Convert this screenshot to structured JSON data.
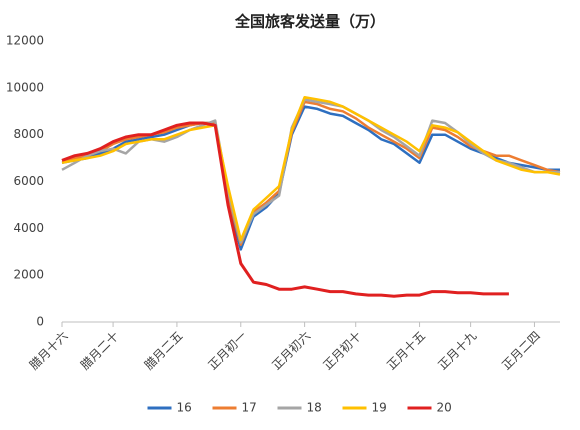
{
  "chart_data": {
    "type": "line",
    "title": "全国旅客发送量（万）",
    "categories": [
      "腊月十六",
      null,
      null,
      null,
      "腊月二十",
      null,
      null,
      null,
      null,
      "腊月二五",
      null,
      null,
      null,
      null,
      "正月初一",
      null,
      null,
      null,
      null,
      "正月初六",
      null,
      null,
      null,
      "正月初十",
      null,
      null,
      null,
      null,
      "正月十五",
      null,
      null,
      null,
      "正月十九",
      null,
      null,
      null,
      null,
      "正月二四",
      null,
      null
    ],
    "series": [
      {
        "name": "16",
        "color": "#2e6fc0",
        "values": [
          6800,
          6900,
          7000,
          7200,
          7400,
          7700,
          7800,
          7900,
          8000,
          8200,
          8400,
          8500,
          8500,
          5200,
          3100,
          4500,
          4900,
          5500,
          8000,
          9200,
          9100,
          8900,
          8800,
          8500,
          8200,
          7800,
          7600,
          7200,
          6800,
          8000,
          8000,
          7700,
          7400,
          7200,
          7000,
          6800,
          6700,
          6600,
          6500,
          6500
        ]
      },
      {
        "name": "17",
        "color": "#ed7d31",
        "values": [
          6900,
          7000,
          7100,
          7300,
          7600,
          7800,
          7900,
          8000,
          8100,
          8300,
          8400,
          8500,
          8500,
          5400,
          3300,
          4700,
          5100,
          5600,
          8100,
          9400,
          9300,
          9100,
          9000,
          8700,
          8300,
          8000,
          7700,
          7400,
          7000,
          8300,
          8200,
          7900,
          7500,
          7300,
          7100,
          7100,
          6900,
          6700,
          6500,
          6400
        ]
      },
      {
        "name": "18",
        "color": "#a5a5a5",
        "values": [
          6500,
          6800,
          7100,
          7300,
          7400,
          7200,
          7700,
          7800,
          7700,
          7900,
          8200,
          8400,
          8600,
          5600,
          3400,
          4600,
          5000,
          5400,
          8300,
          9500,
          9400,
          9300,
          9200,
          8900,
          8600,
          8200,
          7900,
          7500,
          7100,
          8600,
          8500,
          8100,
          7600,
          7200,
          6900,
          6800,
          6600,
          6400,
          6400,
          6400
        ]
      },
      {
        "name": "19",
        "color": "#ffc000",
        "values": [
          6800,
          6900,
          7000,
          7100,
          7300,
          7600,
          7700,
          7800,
          7800,
          8000,
          8200,
          8300,
          8400,
          5800,
          3500,
          4800,
          5300,
          5800,
          8200,
          9600,
          9500,
          9400,
          9200,
          8900,
          8600,
          8300,
          8000,
          7700,
          7300,
          8400,
          8300,
          8100,
          7700,
          7300,
          6900,
          6700,
          6500,
          6400,
          6400,
          6300
        ]
      },
      {
        "name": "20",
        "color": "#e02020",
        "values": [
          6900,
          7100,
          7200,
          7400,
          7700,
          7900,
          8000,
          8000,
          8200,
          8400,
          8500,
          8500,
          8400,
          5000,
          2500,
          1700,
          1600,
          1400,
          1400,
          1500,
          1400,
          1300,
          1300,
          1200,
          1150,
          1150,
          1100,
          1150,
          1150,
          1300,
          1300,
          1250,
          1250,
          1200,
          1200,
          1200,
          null,
          null,
          null,
          null
        ]
      }
    ],
    "ylim": [
      0,
      12000
    ],
    "yticks": [
      0,
      2000,
      4000,
      6000,
      8000,
      10000,
      12000
    ],
    "grid": false,
    "legend": "bottom"
  }
}
